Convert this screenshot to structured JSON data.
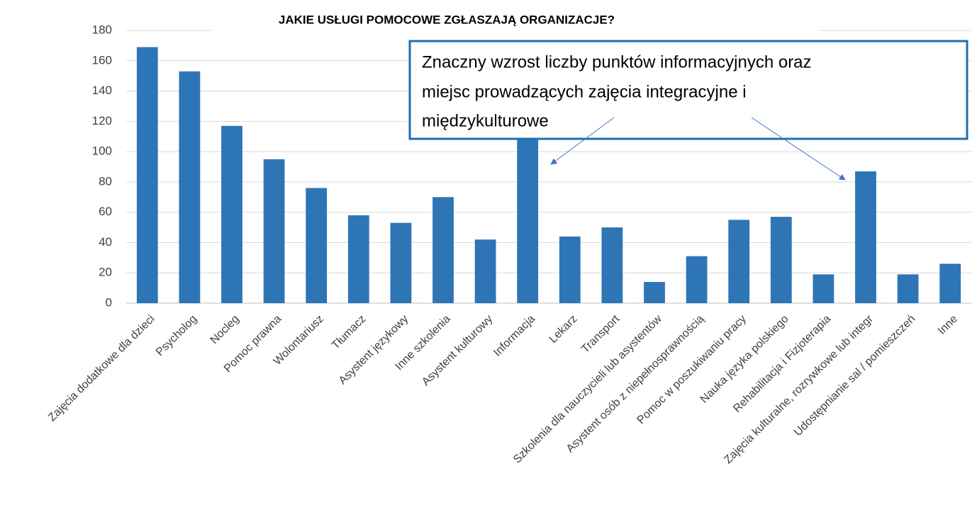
{
  "chart_data": {
    "type": "bar",
    "title": "JAKIE USŁUGI POMOCOWE ZGŁASZAJĄ ORGANIZACJE?",
    "categories": [
      "Zajęcia dodatkowe dla dzieci",
      "Psycholog",
      "Nocleg",
      "Pomoc prawna",
      "Wolontariusz",
      "Tłumacz",
      "Asystent językowy",
      "Inne szkolenia",
      "Asystent kulturowy",
      "Informacja",
      "Lekarz",
      "Transport",
      "Szkolenia dla nauczycieli lub asystentów",
      "Asystent osób z niepełnosprawnością",
      "Pomoc w poszukiwaniu pracy",
      "Nauka języka polskiego",
      "Rehabilitacja i Fizjoterapia",
      "Zajęcia kulturalne, rozrywkowe lub integr",
      "Udostępnianie sal / pomieszczeń",
      "Inne"
    ],
    "values": [
      169,
      153,
      117,
      95,
      76,
      58,
      53,
      70,
      42,
      120,
      44,
      50,
      14,
      31,
      55,
      57,
      19,
      87,
      19,
      26
    ],
    "color": "#2e75b6",
    "ylim": [
      0,
      180
    ],
    "yticks": [
      0,
      20,
      40,
      60,
      80,
      100,
      120,
      140,
      160,
      180
    ],
    "grid": true,
    "annotation": [
      "Znaczny wzrost liczby punktów informacyjnych oraz",
      "miejsc prowadzących zajęcia integracyjne i",
      "międzykulturowe"
    ]
  }
}
